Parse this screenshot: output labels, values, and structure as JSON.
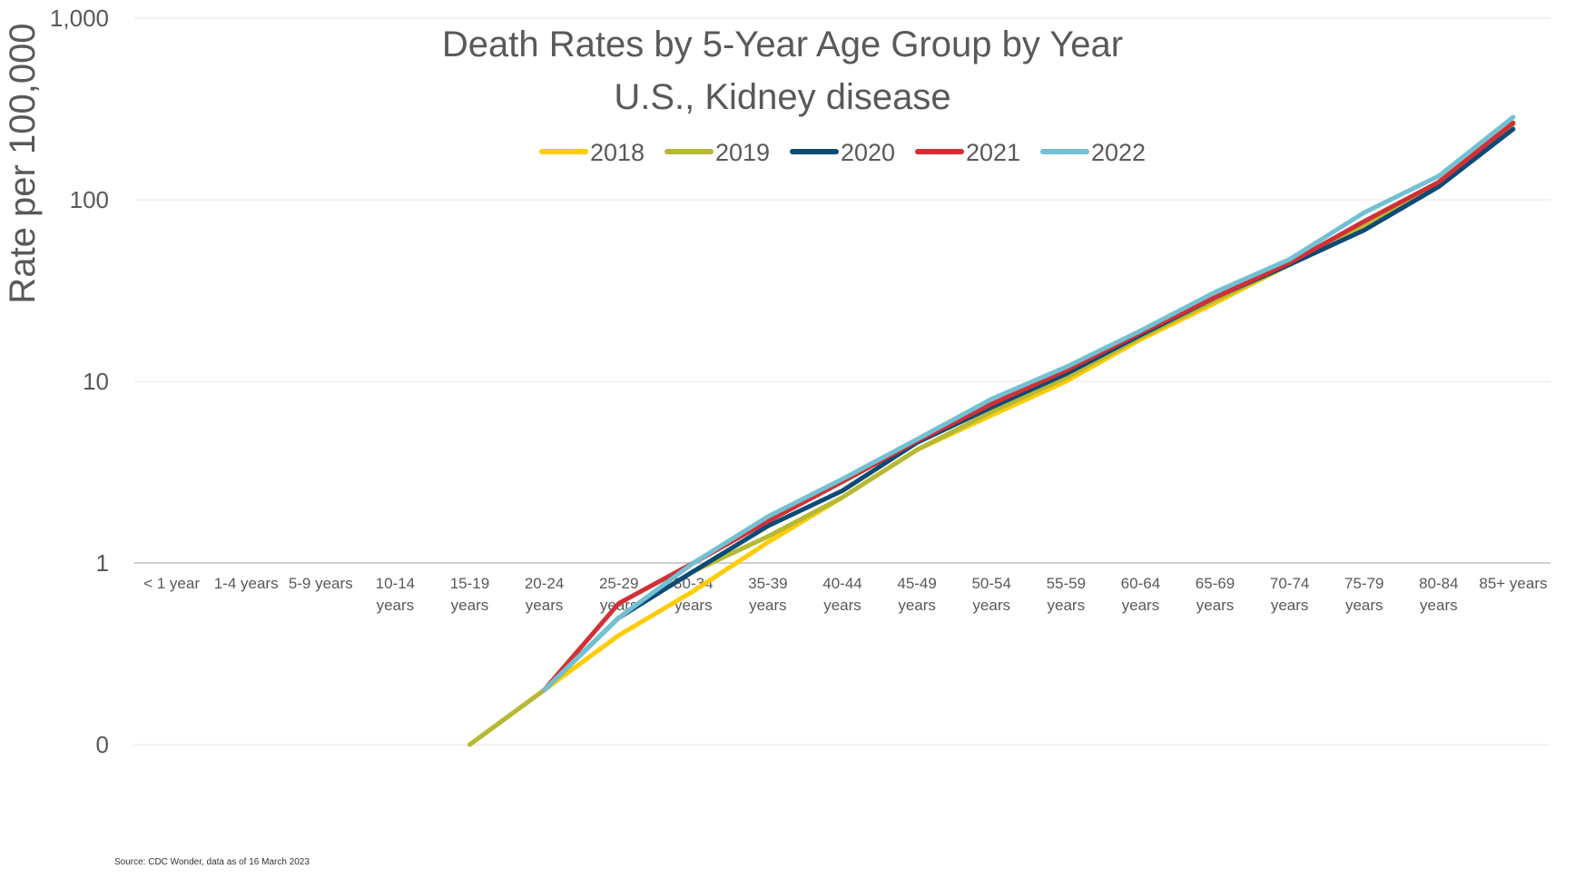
{
  "chart_data": {
    "type": "line",
    "title": [
      "Death Rates by 5-Year Age Group by Year",
      "U.S., Kidney disease"
    ],
    "ylabel": "Rate per 100,000",
    "yscale": "log",
    "ylim": [
      0.1,
      1000
    ],
    "yticks": [
      {
        "value": 0.1,
        "label": "0"
      },
      {
        "value": 1,
        "label": "1"
      },
      {
        "value": 10,
        "label": "10"
      },
      {
        "value": 100,
        "label": "100"
      },
      {
        "value": 1000,
        "label": "1,000"
      }
    ],
    "categories": [
      [
        "< 1 year"
      ],
      [
        "1-4 years"
      ],
      [
        "5-9 years"
      ],
      [
        "10-14",
        "years"
      ],
      [
        "15-19",
        "years"
      ],
      [
        "20-24",
        "years"
      ],
      [
        "25-29",
        "years"
      ],
      [
        "30-34",
        "years"
      ],
      [
        "35-39",
        "years"
      ],
      [
        "40-44",
        "years"
      ],
      [
        "45-49",
        "years"
      ],
      [
        "50-54",
        "years"
      ],
      [
        "55-59",
        "years"
      ],
      [
        "60-64",
        "years"
      ],
      [
        "65-69",
        "years"
      ],
      [
        "70-74",
        "years"
      ],
      [
        "75-79",
        "years"
      ],
      [
        "80-84",
        "years"
      ],
      [
        "85+ years"
      ]
    ],
    "legend_position": "top",
    "grid": true,
    "series": [
      {
        "name": "2018",
        "color": "#FFCC00",
        "values": [
          null,
          null,
          null,
          null,
          0.1,
          0.2,
          0.4,
          0.7,
          1.3,
          2.3,
          4.2,
          6.5,
          10.0,
          17.0,
          27.0,
          44.0,
          72.0,
          125.0,
          265.0
        ]
      },
      {
        "name": "2019",
        "color": "#B5B935",
        "values": [
          null,
          null,
          null,
          null,
          0.1,
          0.2,
          0.5,
          0.9,
          1.4,
          2.3,
          4.2,
          6.8,
          10.5,
          17.5,
          28.0,
          44.0,
          73.0,
          122.0,
          260.0
        ]
      },
      {
        "name": "2020",
        "color": "#0D4A76",
        "values": [
          null,
          null,
          null,
          null,
          null,
          0.2,
          0.5,
          0.9,
          1.6,
          2.5,
          4.6,
          7.2,
          11.0,
          18.0,
          29.0,
          44.0,
          68.0,
          118.0,
          245.0
        ]
      },
      {
        "name": "2021",
        "color": "#D03036",
        "values": [
          null,
          null,
          null,
          null,
          null,
          0.2,
          0.6,
          1.0,
          1.7,
          2.8,
          4.7,
          7.5,
          11.5,
          18.5,
          29.0,
          45.0,
          76.0,
          125.0,
          265.0
        ]
      },
      {
        "name": "2022",
        "color": "#72C1D3",
        "values": [
          null,
          null,
          null,
          null,
          null,
          0.2,
          0.5,
          1.0,
          1.8,
          2.9,
          4.8,
          8.0,
          12.0,
          19.0,
          31.0,
          47.0,
          85.0,
          135.0,
          285.0
        ]
      }
    ],
    "source": "Source: CDC Wonder, data as of 16 March 2023"
  }
}
